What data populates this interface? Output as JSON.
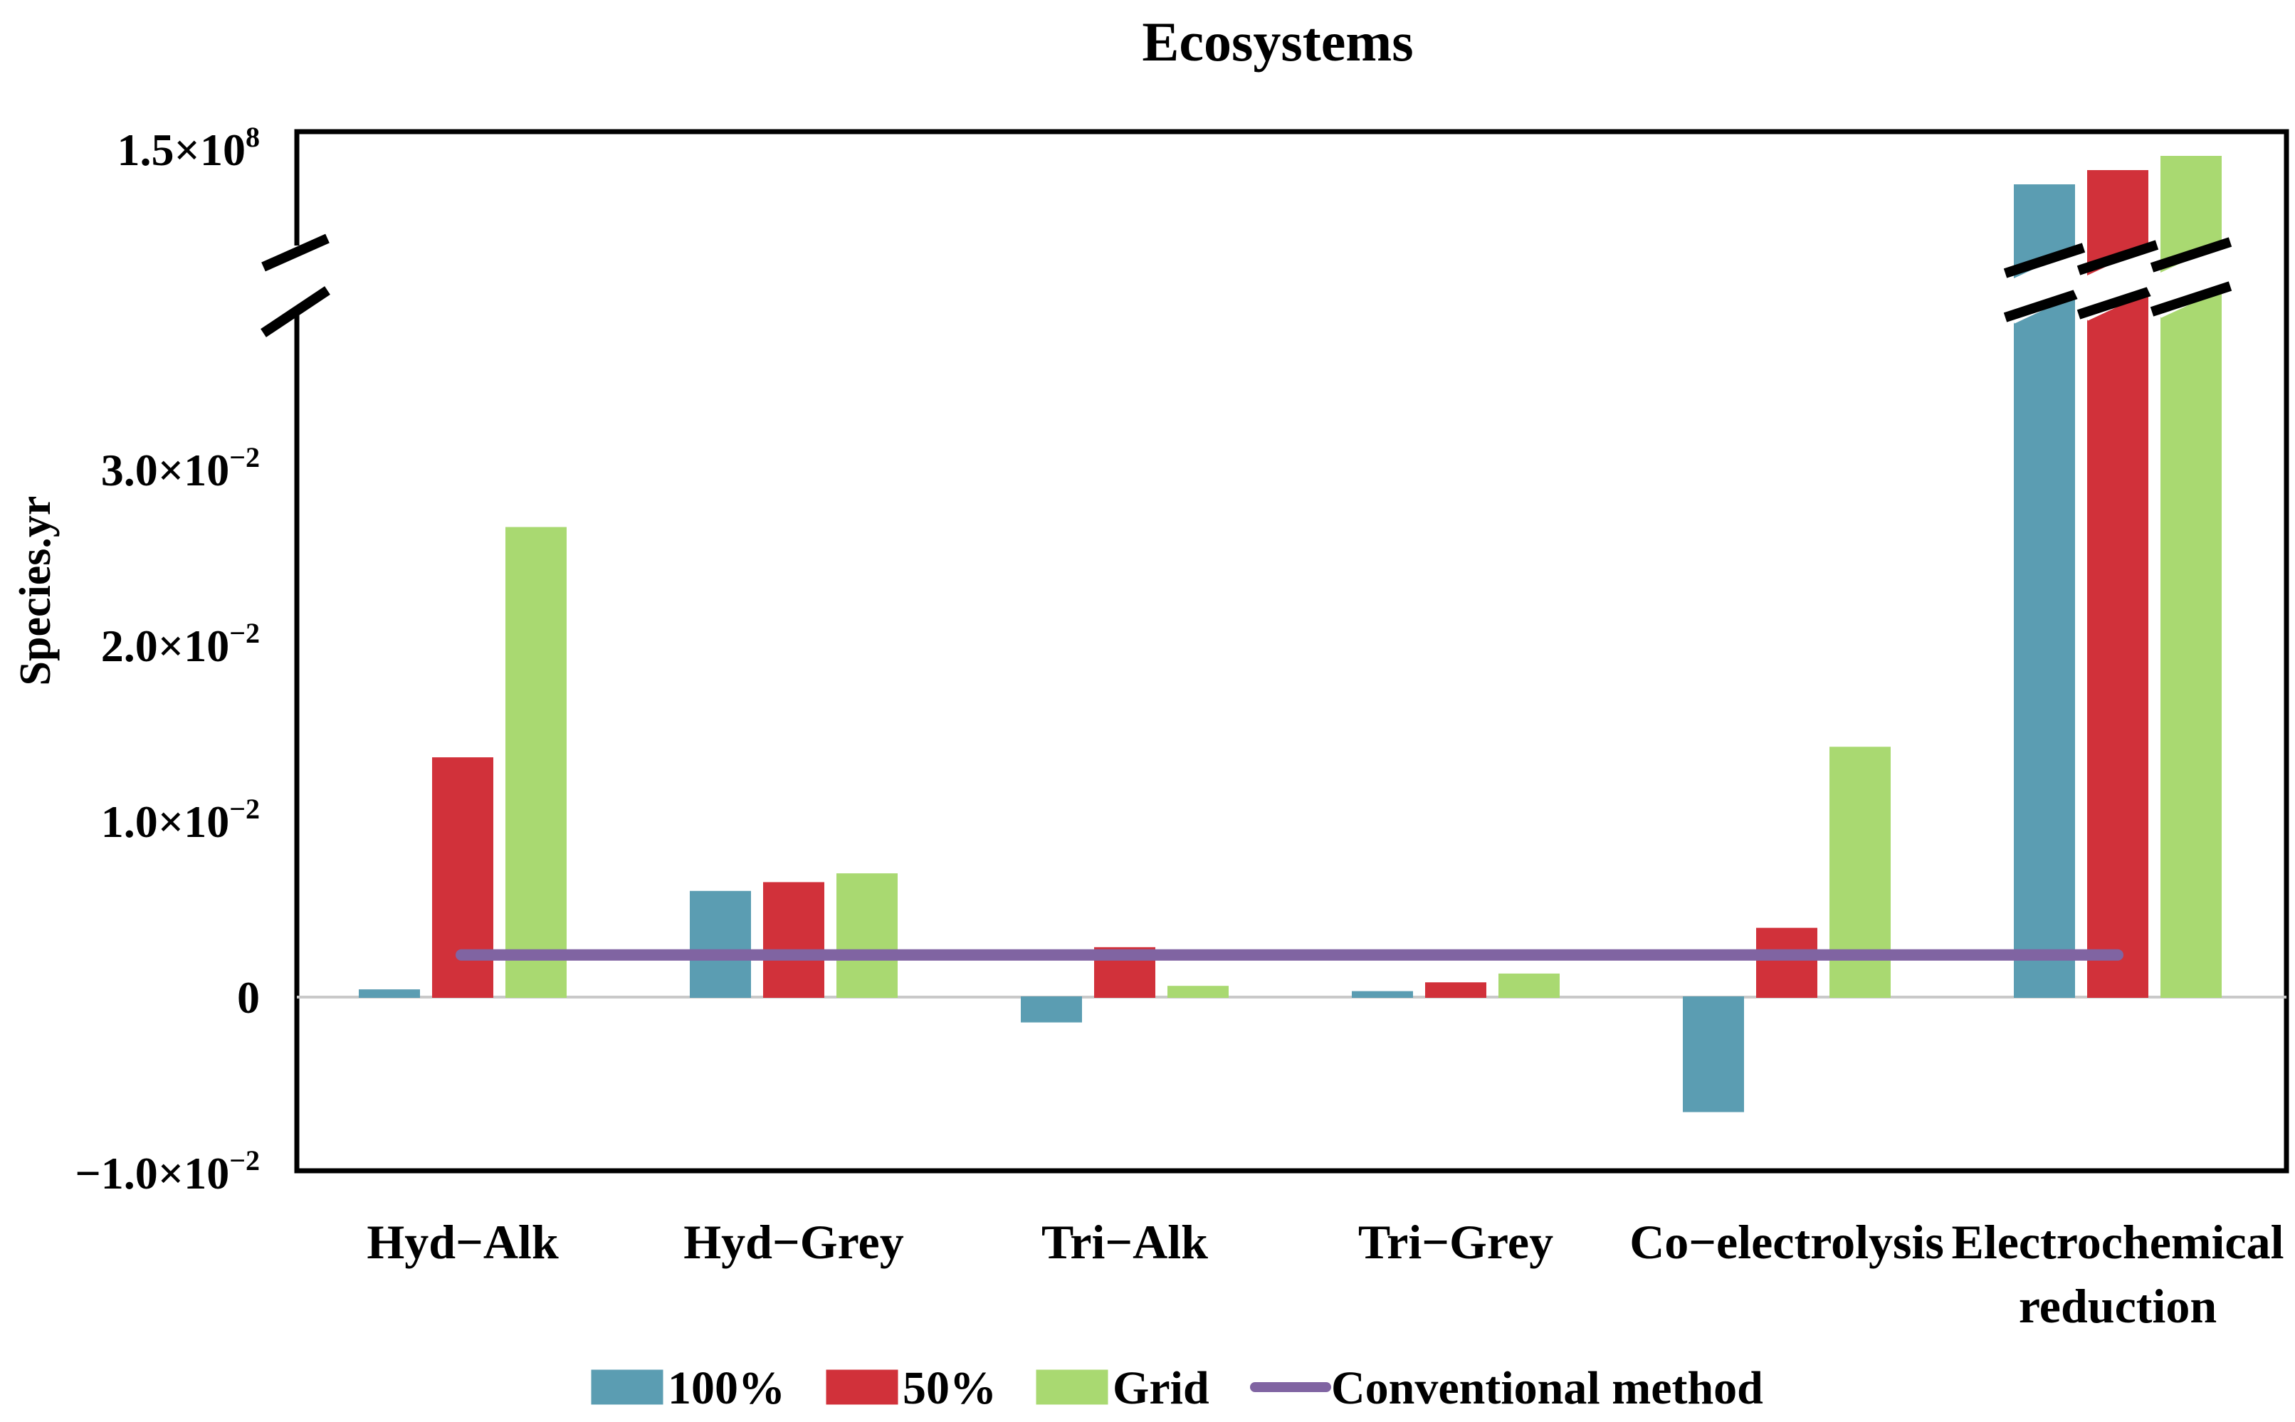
{
  "chart_data": {
    "type": "bar",
    "title": "Ecosystems",
    "xlabel": "",
    "ylabel": "Species.yr",
    "categories": [
      [
        "Hyd−Alk"
      ],
      [
        "Hyd−Grey"
      ],
      [
        "Tri−Alk"
      ],
      [
        "Tri−Grey"
      ],
      [
        "Co−electrolysis"
      ],
      [
        "Electrochemical",
        "reduction"
      ]
    ],
    "series": [
      {
        "name": "100%",
        "color": "#5b9db2",
        "values": [
          0.0004,
          0.006,
          -0.0014,
          0.0003,
          -0.0065,
          null
        ]
      },
      {
        "name": "50%",
        "color": "#d1313a",
        "values": [
          0.0136,
          0.0065,
          0.0028,
          0.0008,
          0.0039,
          null
        ]
      },
      {
        "name": "Grid",
        "color": "#a9d971",
        "values": [
          0.0267,
          0.007,
          0.0006,
          0.0013,
          0.0142,
          null
        ]
      }
    ],
    "broken_axis_values": {
      "category_index": 5,
      "upper_segment_range": [
        125000000.0,
        150000000.0
      ],
      "values": [
        145000000.0,
        147000000.0,
        149000000.0
      ]
    },
    "reference_line": {
      "name": "Conventional method",
      "color": "#8064a2",
      "value": 0.0024
    },
    "ylim": [
      -0.01,
      0.0394
    ],
    "ytick_labels": [
      {
        "value": -0.01,
        "mant": "−1.0×10",
        "exp": "−2"
      },
      {
        "value": 0,
        "mant": "0",
        "exp": ""
      },
      {
        "value": 0.01,
        "mant": "1.0×10",
        "exp": "−2"
      },
      {
        "value": 0.02,
        "mant": "2.0×10",
        "exp": "−2"
      },
      {
        "value": 0.03,
        "mant": "3.0×10",
        "exp": "−2"
      }
    ],
    "top_tick_label": {
      "value": 150000000.0,
      "mant": "1.5×10",
      "exp": "8"
    },
    "legend": [
      {
        "label": "100%",
        "kind": "bar",
        "color": "#5b9db2"
      },
      {
        "label": "50%",
        "kind": "bar",
        "color": "#d1313a"
      },
      {
        "label": "Grid",
        "kind": "bar",
        "color": "#a9d971"
      },
      {
        "label": "Conventional method",
        "kind": "line",
        "color": "#8064a2"
      }
    ],
    "legend_position": "bottom-center",
    "grid": false
  }
}
